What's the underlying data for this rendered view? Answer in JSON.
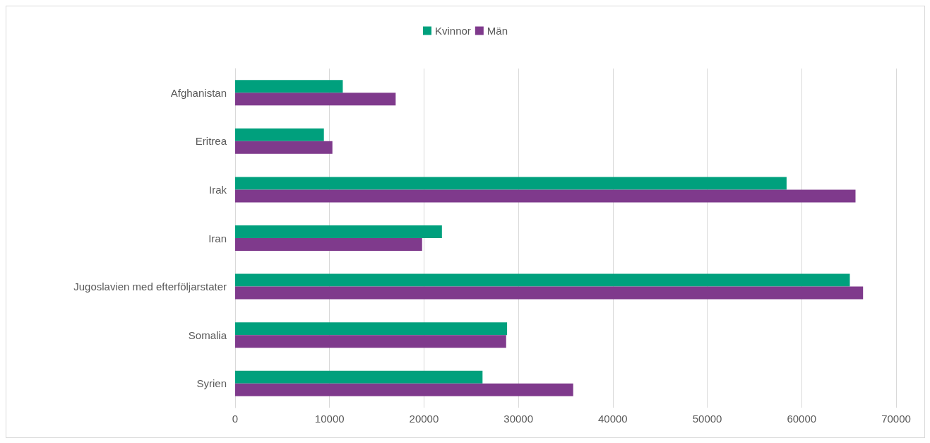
{
  "chart_data": {
    "type": "bar",
    "orientation": "horizontal",
    "categories": [
      "Afghanistan",
      "Eritrea",
      "Irak",
      "Iran",
      "Jugoslavien med efterföljarstater",
      "Somalia",
      "Syrien"
    ],
    "series": [
      {
        "name": "Kvinnor",
        "color": "#00a07d",
        "values": [
          11400,
          9400,
          58400,
          21900,
          65100,
          28800,
          26200
        ]
      },
      {
        "name": "Män",
        "color": "#7f3a8c",
        "values": [
          17000,
          10300,
          65700,
          19800,
          66500,
          28700,
          35800
        ]
      }
    ],
    "xlim": [
      0,
      70000
    ],
    "xticks": [
      0,
      10000,
      20000,
      30000,
      40000,
      50000,
      60000,
      70000
    ],
    "grid": "x",
    "legend": "top"
  }
}
